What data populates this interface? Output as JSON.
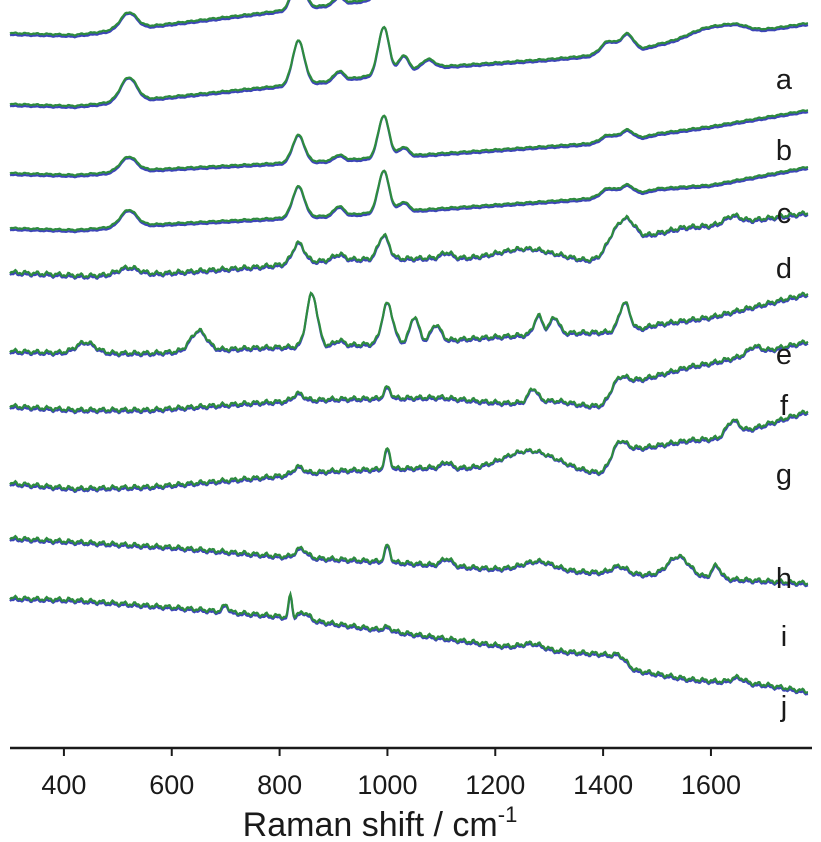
{
  "chart_data": {
    "type": "line",
    "title": "",
    "xlabel": "Raman shift / cm",
    "xlabel_superscript": "-1",
    "ylabel": "",
    "xlim": [
      300,
      1780
    ],
    "x_ticks": [
      400,
      600,
      800,
      1000,
      1200,
      1400,
      1600
    ],
    "x_tick_labels": [
      "400",
      "600",
      "800",
      "1000",
      "1200",
      "1400",
      "1600"
    ],
    "grid": false,
    "legend": "none",
    "colors": {
      "blue": "#3d45b8",
      "green": "#2e8b3e",
      "axis": "#1a1a1a"
    },
    "traces": [
      {
        "label": "a",
        "base": [
          [
            300,
            0
          ],
          [
            420,
            -2
          ],
          [
            560,
            8
          ],
          [
            760,
            22
          ],
          [
            900,
            32
          ],
          [
            1100,
            48
          ],
          [
            1300,
            56
          ],
          [
            1450,
            62
          ],
          [
            1500,
            72
          ],
          [
            1600,
            80
          ],
          [
            1780,
            96
          ]
        ],
        "peaks": [
          [
            520,
            18,
            15
          ],
          [
            835,
            38,
            11
          ],
          [
            910,
            8,
            9
          ],
          [
            993,
            58,
            10
          ],
          [
            1030,
            14,
            9
          ],
          [
            1075,
            8,
            12
          ],
          [
            1410,
            14,
            14
          ],
          [
            1445,
            18,
            12
          ],
          [
            1600,
            8,
            40
          ],
          [
            1650,
            7,
            20
          ]
        ]
      },
      {
        "label": "b",
        "base": [
          [
            300,
            0
          ],
          [
            420,
            -2
          ],
          [
            560,
            6
          ],
          [
            760,
            18
          ],
          [
            900,
            26
          ],
          [
            1100,
            42
          ],
          [
            1300,
            50
          ],
          [
            1450,
            58
          ],
          [
            1500,
            66
          ],
          [
            1600,
            74
          ],
          [
            1780,
            90
          ]
        ],
        "peaks": [
          [
            520,
            26,
            15
          ],
          [
            835,
            48,
            11
          ],
          [
            910,
            10,
            9
          ],
          [
            993,
            52,
            10
          ],
          [
            1030,
            18,
            9
          ],
          [
            1075,
            10,
            12
          ],
          [
            1410,
            14,
            14
          ],
          [
            1445,
            20,
            12
          ],
          [
            1600,
            12,
            40
          ],
          [
            1650,
            5,
            20
          ]
        ]
      },
      {
        "label": "c",
        "base": [
          [
            300,
            0
          ],
          [
            420,
            -2
          ],
          [
            560,
            4
          ],
          [
            760,
            10
          ],
          [
            900,
            14
          ],
          [
            1100,
            22
          ],
          [
            1300,
            30
          ],
          [
            1450,
            36
          ],
          [
            1500,
            44
          ],
          [
            1600,
            52
          ],
          [
            1780,
            70
          ]
        ],
        "peaks": [
          [
            520,
            16,
            15
          ],
          [
            835,
            30,
            11
          ],
          [
            910,
            6,
            9
          ],
          [
            993,
            46,
            10
          ],
          [
            1030,
            10,
            9
          ],
          [
            1410,
            8,
            14
          ],
          [
            1445,
            12,
            12
          ]
        ]
      },
      {
        "label": "d",
        "base": [
          [
            300,
            0
          ],
          [
            420,
            -2
          ],
          [
            560,
            4
          ],
          [
            760,
            10
          ],
          [
            900,
            14
          ],
          [
            1100,
            22
          ],
          [
            1300,
            30
          ],
          [
            1450,
            36
          ],
          [
            1500,
            44
          ],
          [
            1600,
            48
          ],
          [
            1780,
            68
          ]
        ],
        "peaks": [
          [
            520,
            18,
            15
          ],
          [
            835,
            34,
            11
          ],
          [
            910,
            10,
            9
          ],
          [
            993,
            46,
            10
          ],
          [
            1030,
            10,
            9
          ],
          [
            1410,
            10,
            14
          ],
          [
            1445,
            12,
            12
          ]
        ]
      },
      {
        "label": "e",
        "base": [
          [
            300,
            0
          ],
          [
            440,
            -4
          ],
          [
            560,
            -2
          ],
          [
            760,
            6
          ],
          [
            900,
            14
          ],
          [
            1100,
            16
          ],
          [
            1200,
            12
          ],
          [
            1300,
            6
          ],
          [
            1400,
            10
          ],
          [
            1460,
            38
          ],
          [
            1550,
            50
          ],
          [
            1600,
            52
          ],
          [
            1780,
            66
          ]
        ],
        "peaks": [
          [
            520,
            8,
            20
          ],
          [
            835,
            22,
            11
          ],
          [
            910,
            6,
            10
          ],
          [
            993,
            26,
            10
          ],
          [
            1110,
            6,
            10
          ],
          [
            1270,
            18,
            60
          ],
          [
            1420,
            22,
            18
          ],
          [
            1445,
            20,
            14
          ],
          [
            1640,
            8,
            14
          ]
        ]
      },
      {
        "label": "f",
        "base": [
          [
            300,
            0
          ],
          [
            420,
            -2
          ],
          [
            560,
            -2
          ],
          [
            760,
            4
          ],
          [
            900,
            6
          ],
          [
            1100,
            12
          ],
          [
            1300,
            20
          ],
          [
            1450,
            22
          ],
          [
            1500,
            30
          ],
          [
            1600,
            38
          ],
          [
            1780,
            64
          ]
        ],
        "peaks": [
          [
            440,
            12,
            18
          ],
          [
            650,
            22,
            15
          ],
          [
            860,
            58,
            10
          ],
          [
            910,
            6,
            9
          ],
          [
            1000,
            44,
            10
          ],
          [
            1050,
            28,
            8
          ],
          [
            1090,
            18,
            9
          ],
          [
            1280,
            20,
            8
          ],
          [
            1310,
            18,
            8
          ],
          [
            1440,
            32,
            10
          ]
        ]
      },
      {
        "label": "g",
        "base": [
          [
            300,
            0
          ],
          [
            420,
            -4
          ],
          [
            560,
            -4
          ],
          [
            760,
            4
          ],
          [
            900,
            8
          ],
          [
            1100,
            10
          ],
          [
            1200,
            4
          ],
          [
            1300,
            -4
          ],
          [
            1400,
            0
          ],
          [
            1460,
            28
          ],
          [
            1560,
            44
          ],
          [
            1600,
            48
          ],
          [
            1780,
            72
          ]
        ],
        "peaks": [
          [
            835,
            8,
            10
          ],
          [
            1000,
            12,
            6
          ],
          [
            1270,
            14,
            8
          ],
          [
            1300,
            10,
            40
          ],
          [
            1430,
            18,
            15
          ],
          [
            1680,
            8,
            12
          ]
        ]
      },
      {
        "label": "h",
        "base": [
          [
            300,
            0
          ],
          [
            420,
            -6
          ],
          [
            560,
            -4
          ],
          [
            760,
            6
          ],
          [
            900,
            14
          ],
          [
            1100,
            18
          ],
          [
            1200,
            12
          ],
          [
            1300,
            6
          ],
          [
            1400,
            10
          ],
          [
            1460,
            38
          ],
          [
            1560,
            48
          ],
          [
            1620,
            50
          ],
          [
            1780,
            80
          ]
        ],
        "peaks": [
          [
            835,
            8,
            10
          ],
          [
            1000,
            22,
            5
          ],
          [
            1110,
            6,
            8
          ],
          [
            1270,
            28,
            55
          ],
          [
            1430,
            22,
            14
          ],
          [
            1640,
            16,
            12
          ]
        ]
      },
      {
        "label": "i",
        "base": [
          [
            300,
            0
          ],
          [
            420,
            -4
          ],
          [
            600,
            -10
          ],
          [
            800,
            -20
          ],
          [
            1000,
            -26
          ],
          [
            1200,
            -34
          ],
          [
            1400,
            -38
          ],
          [
            1600,
            -44
          ],
          [
            1780,
            -50
          ]
        ],
        "peaks": [
          [
            840,
            10,
            10
          ],
          [
            1000,
            18,
            5
          ],
          [
            1110,
            8,
            10
          ],
          [
            1280,
            10,
            30
          ],
          [
            1430,
            8,
            14
          ],
          [
            1540,
            22,
            20
          ],
          [
            1610,
            14,
            8
          ]
        ]
      },
      {
        "label": "j",
        "base": [
          [
            300,
            0
          ],
          [
            420,
            -2
          ],
          [
            600,
            -10
          ],
          [
            800,
            -20
          ],
          [
            1000,
            -36
          ],
          [
            1200,
            -52
          ],
          [
            1300,
            -58
          ],
          [
            1400,
            -62
          ],
          [
            1460,
            -80
          ],
          [
            1560,
            -90
          ],
          [
            1700,
            -96
          ],
          [
            1780,
            -104
          ]
        ],
        "peaks": [
          [
            700,
            8,
            5
          ],
          [
            820,
            26,
            3
          ],
          [
            845,
            8,
            10
          ],
          [
            1000,
            4,
            8
          ],
          [
            1270,
            6,
            20
          ],
          [
            1430,
            8,
            12
          ],
          [
            1650,
            6,
            12
          ]
        ]
      }
    ]
  }
}
